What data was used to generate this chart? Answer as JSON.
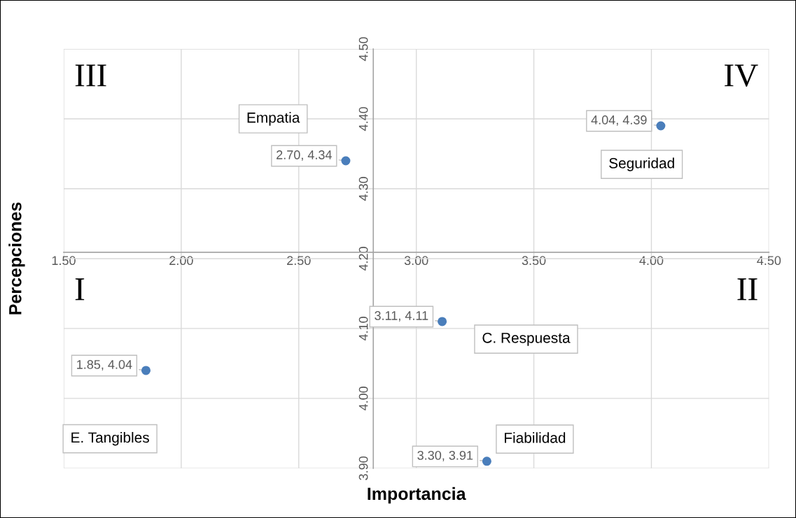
{
  "chart_data": {
    "type": "scatter",
    "xlabel": "Importancia",
    "ylabel": "Percepciones",
    "x": [
      2.7,
      4.04,
      3.11,
      1.85,
      3.3
    ],
    "values": [
      4.34,
      4.39,
      4.11,
      4.04,
      3.91
    ],
    "color": "#4a7ebb",
    "marker": "circle",
    "value_labels": [
      "2.70, 4.34",
      "4.04, 4.39",
      "3.11, 4.11",
      "1.85, 4.04",
      "3.30, 3.91"
    ],
    "annotations": [
      "Empatia",
      "Seguridad",
      "C. Respuesta",
      "E. Tangibles",
      "Fiabilidad",
      "III",
      "IV",
      "I",
      "II"
    ],
    "xlim": [
      1.5,
      4.5
    ],
    "xticks": [
      {
        "value": 1.5,
        "label": "1.50"
      },
      {
        "value": 2.0,
        "label": "2.00"
      },
      {
        "value": 2.5,
        "label": "2.50"
      },
      {
        "value": 3.0,
        "label": "3.00"
      },
      {
        "value": 3.5,
        "label": "3.50"
      },
      {
        "value": 4.0,
        "label": "4.00"
      },
      {
        "value": 4.5,
        "label": "4.50"
      }
    ],
    "ylim": [
      3.9,
      4.5
    ],
    "yticks": [
      {
        "value": 3.9,
        "label": "3.90"
      },
      {
        "value": 4.0,
        "label": "4.00"
      },
      {
        "value": 4.1,
        "label": "4.10"
      },
      {
        "value": 4.2,
        "label": "4.20"
      },
      {
        "value": 4.3,
        "label": "4.30"
      },
      {
        "value": 4.4,
        "label": "4.40"
      },
      {
        "value": 4.5,
        "label": "4.50"
      }
    ],
    "grid": true
  }
}
